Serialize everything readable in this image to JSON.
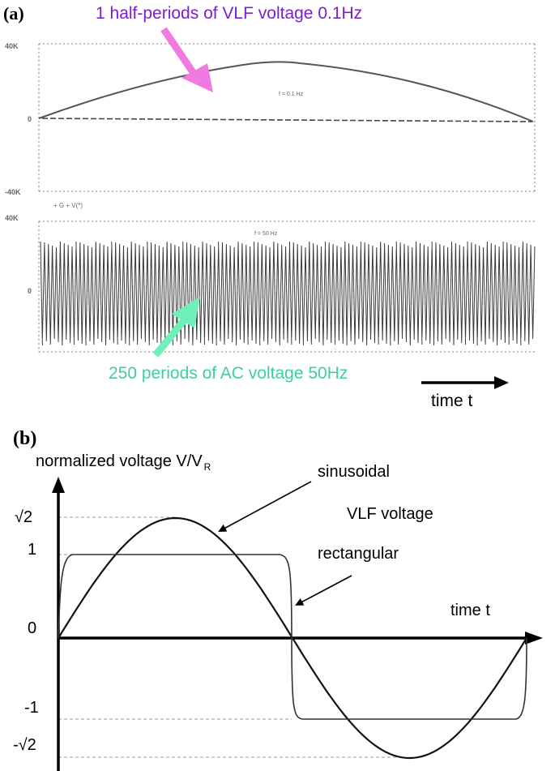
{
  "panel_a": {
    "label": "(a)",
    "vlf_annotation": "1 half-periods of VLF voltage 0.1Hz",
    "ac_annotation": "250 periods of AC voltage 50Hz",
    "time_label": "time t",
    "scope_top": {
      "ytick_top": "40K",
      "ytick_zero": "0",
      "ytick_bottom": "-40K",
      "freq_label": "f = 0.1 Hz",
      "trace_label": "+ G   + V(*)"
    },
    "scope_bottom": {
      "ytick_top": "40K",
      "ytick_zero": "0",
      "freq_label": "f = 50 Hz"
    },
    "colors": {
      "vlf_annotation": "#7b1fc9",
      "vlf_arrow": "#f07ae0",
      "ac_annotation": "#3ecf9a",
      "ac_arrow": "#6ff0b8"
    }
  },
  "panel_b": {
    "label": "(b)",
    "ylabel": "normalized voltage V/V",
    "ylabel_sub": "R",
    "xlabel": "time t",
    "yticks": [
      "√2",
      "1",
      "0",
      "-1",
      "-√2"
    ],
    "sinusoidal_label": "sinusoidal",
    "vlf_label": "VLF voltage",
    "rectangular_label": "rectangular"
  }
}
